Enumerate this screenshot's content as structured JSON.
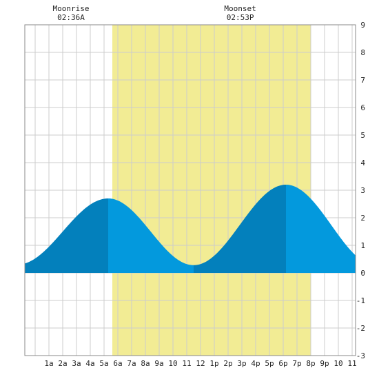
{
  "header": {
    "moonrise": {
      "label": "Moonrise",
      "time": "02:36A"
    },
    "moonset": {
      "label": "Moonset",
      "time": "02:53P"
    }
  },
  "chart_data": {
    "type": "area",
    "x_unit": "hour of day",
    "xlim": [
      -0.75,
      23.25
    ],
    "ylim": [
      -3,
      9
    ],
    "y_ticks": [
      -3,
      -2,
      -1,
      0,
      1,
      2,
      3,
      4,
      5,
      6,
      7,
      8,
      9
    ],
    "x_tick_labels": [
      "1a",
      "2a",
      "3a",
      "4a",
      "5a",
      "6a",
      "7a",
      "8a",
      "9a",
      "10",
      "11",
      "12",
      "1p",
      "2p",
      "3p",
      "4p",
      "5p",
      "6p",
      "7p",
      "8p",
      "9p",
      "10",
      "11"
    ],
    "x_tick_hours": [
      1,
      2,
      3,
      4,
      5,
      6,
      7,
      8,
      9,
      10,
      11,
      12,
      13,
      14,
      15,
      16,
      17,
      18,
      19,
      20,
      21,
      22,
      23
    ],
    "grid": true,
    "daylight": {
      "start": 5.6,
      "end": 20.0
    },
    "moonrise_hour": 2.6,
    "moonset_hour": 14.88,
    "extremes": [
      {
        "type": "low",
        "time": -1.3,
        "height": 0.3
      },
      {
        "type": "high",
        "time": 5.3,
        "height": 2.7
      },
      {
        "type": "low",
        "time": 11.5,
        "height": 0.28
      },
      {
        "type": "high",
        "time": 18.2,
        "height": 3.2
      },
      {
        "type": "low",
        "time": 24.8,
        "height": 0.25
      }
    ],
    "rising_periods": [
      [
        -0.75,
        5.3
      ],
      [
        11.5,
        18.2
      ]
    ],
    "colors": {
      "daylight": "#f2ec94",
      "tide_rising": "#0380bc",
      "tide_falling": "#0399dd",
      "grid": "#cccccc",
      "border": "#888888"
    }
  }
}
